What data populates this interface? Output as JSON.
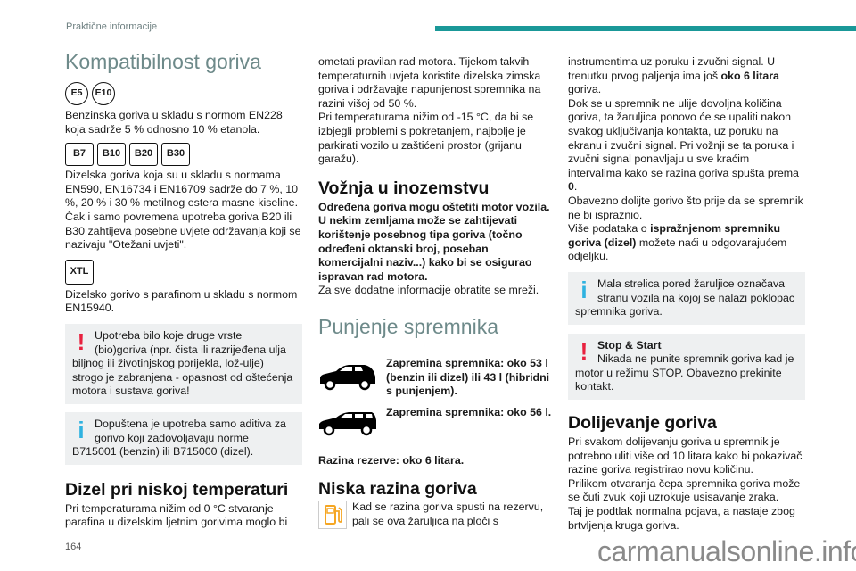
{
  "header": {
    "section": "Praktične informacije",
    "accent_color": "#1a9898"
  },
  "page_number": "164",
  "watermark": "carmanualsonline.info",
  "left": {
    "title": "Kompatibilnost goriva",
    "petrol_badges": [
      "E5",
      "E10"
    ],
    "petrol_text": "Benzinska goriva u skladu s normom EN228 koja sadrže 5 % odnosno 10 % etanola.",
    "diesel_badges": [
      "B7",
      "B10",
      "B20",
      "B30"
    ],
    "diesel_text": "Dizelska goriva koja su u skladu s normama EN590, EN16734 i EN16709 sadrže do 7 %, 10 %, 20 % i 30 % metilnog estera masne kiseline. Čak i samo povremena upotreba goriva B20 ili B30 zahtijeva posebne uvjete održavanja koji se nazivaju \"Otežani uvjeti\".",
    "xtl_badge": "XTL",
    "xtl_text": "Dizelsko gorivo s parafinom u skladu s normom EN15940.",
    "warning_text": "Upotreba bilo koje druge vrste (bio)goriva (npr. čista ili razrijeđena ulja biljnog ili životinjskog porijekla, lož-ulje) strogo je zabranjena - opasnost od oštećenja motora i sustava goriva!",
    "info_text": "Dopuštena je upotreba samo aditiva za gorivo koji zadovoljavaju norme B715001 (benzin) ili B715000 (dizel).",
    "cold_heading": "Dizel pri niskoj temperaturi",
    "cold_text": "Pri temperaturama nižim od 0 °C stvaranje parafina u dizelskim ljetnim gorivima moglo bi"
  },
  "middle": {
    "cold_text_cont": "ometati pravilan rad motora. Tijekom takvih temperaturnih uvjeta koristite dizelska zimska goriva i održavajte napunjenost spremnika na razini višoj od 50 %.",
    "cold_text_2": "Pri temperaturama nižim od -15 °C, da bi se izbjegli problemi s pokretanjem, najbolje je parkirati vozilo u zaštićeni prostor (grijanu garažu).",
    "abroad_heading": "Vožnja u inozemstvu",
    "abroad_bold": "Određena goriva mogu oštetiti motor vozila. U nekim zemljama može se zahtijevati korištenje posebnog tipa goriva (točno određeni oktanski broj, poseban komercijalni naziv...) kako bi se osigurao ispravan rad motora.",
    "abroad_text": "Za sve dodatne informacije obratite se mreži.",
    "fill_heading": "Punjenje spremnika",
    "tank_suv": "Zapremina spremnika: oko 53 l (benzin ili dizel) ili 43 l (hibridni s punjenjem).",
    "tank_wagon": "Zapremina spremnika: oko 56 l.",
    "reserve": "Razina rezerve: oko 6 litara.",
    "low_heading": "Niska razina goriva",
    "low_text": "Kad se razina goriva spusti na rezervu, pali se ova žaruljica na ploči s",
    "fuel_icon_color": "#f5a623"
  },
  "right": {
    "p1a": "instrumentima uz poruku i zvučni signal. U trenutku prvog paljenja ima još ",
    "p1b": "oko 6 litara",
    "p1c": " goriva.",
    "p2a": "Dok se u spremnik ne ulije dovoljna količina goriva, ta žaruljica ponovo će se upaliti nakon svakog uključivanja kontakta, uz poruku na ekranu i zvučni signal. Pri vožnji se ta poruka i zvučni signal ponavljaju u sve kraćim intervalima kako se razina goriva spušta prema ",
    "p2b": "0",
    "p2c": ".",
    "p3": "Obavezno dolijte gorivo što prije da se spremnik ne bi ispraznio.",
    "p4a": "Više podataka o ",
    "p4b": "ispražnjenom spremniku goriva (dizel)",
    "p4c": " možete naći u odgovarajućem odjeljku.",
    "info_text": "Mala strelica pored žaruljice označava stranu vozila na kojoj se nalazi poklopac spremnika goriva.",
    "stop_title": "Stop & Start",
    "stop_text": "Nikada ne punite spremnik goriva kad je motor u režimu STOP. Obavezno prekinite kontakt.",
    "refuel_heading": "Dolijevanje goriva",
    "refuel_1": "Pri svakom dolijevanju goriva u spremnik je potrebno uliti više od 10 litara kako bi pokazivač razine goriva registrirao novu količinu.",
    "refuel_2": "Prilikom otvaranja čepa spremnika goriva može se čuti zvuk koji uzrokuje usisavanje zraka.",
    "refuel_3": "Taj je podtlak normalna pojava, a nastaje zbog brtvljenja kruga goriva."
  }
}
